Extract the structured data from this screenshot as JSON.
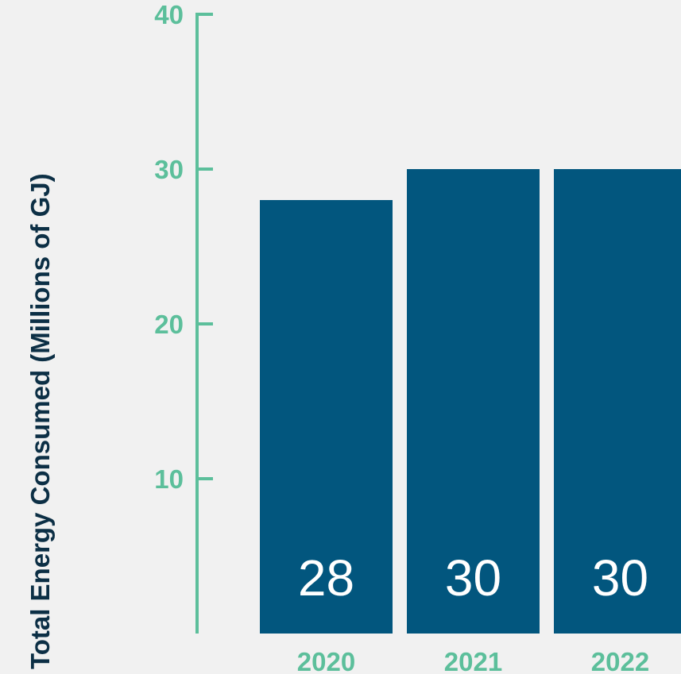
{
  "chart_data": {
    "type": "bar",
    "title": "",
    "xlabel": "",
    "ylabel": "Total Energy Consumed (Millions of GJ)",
    "categories": [
      "2020",
      "2021",
      "2022"
    ],
    "values": [
      28,
      30,
      30
    ],
    "value_labels": [
      "28",
      "30",
      "30"
    ],
    "ylim": [
      0,
      40
    ],
    "y_ticks": [
      10,
      20,
      30,
      40
    ],
    "y_tick_labels": [
      "10",
      "20",
      "30",
      "40"
    ],
    "grid": false,
    "colors": {
      "bar": "#02567e",
      "axis": "#5cbf9b",
      "axis_text": "#5cbf9b",
      "ylabel_text": "#0c2f45",
      "value_text": "#ffffff",
      "background": "#f1f1f1"
    }
  }
}
